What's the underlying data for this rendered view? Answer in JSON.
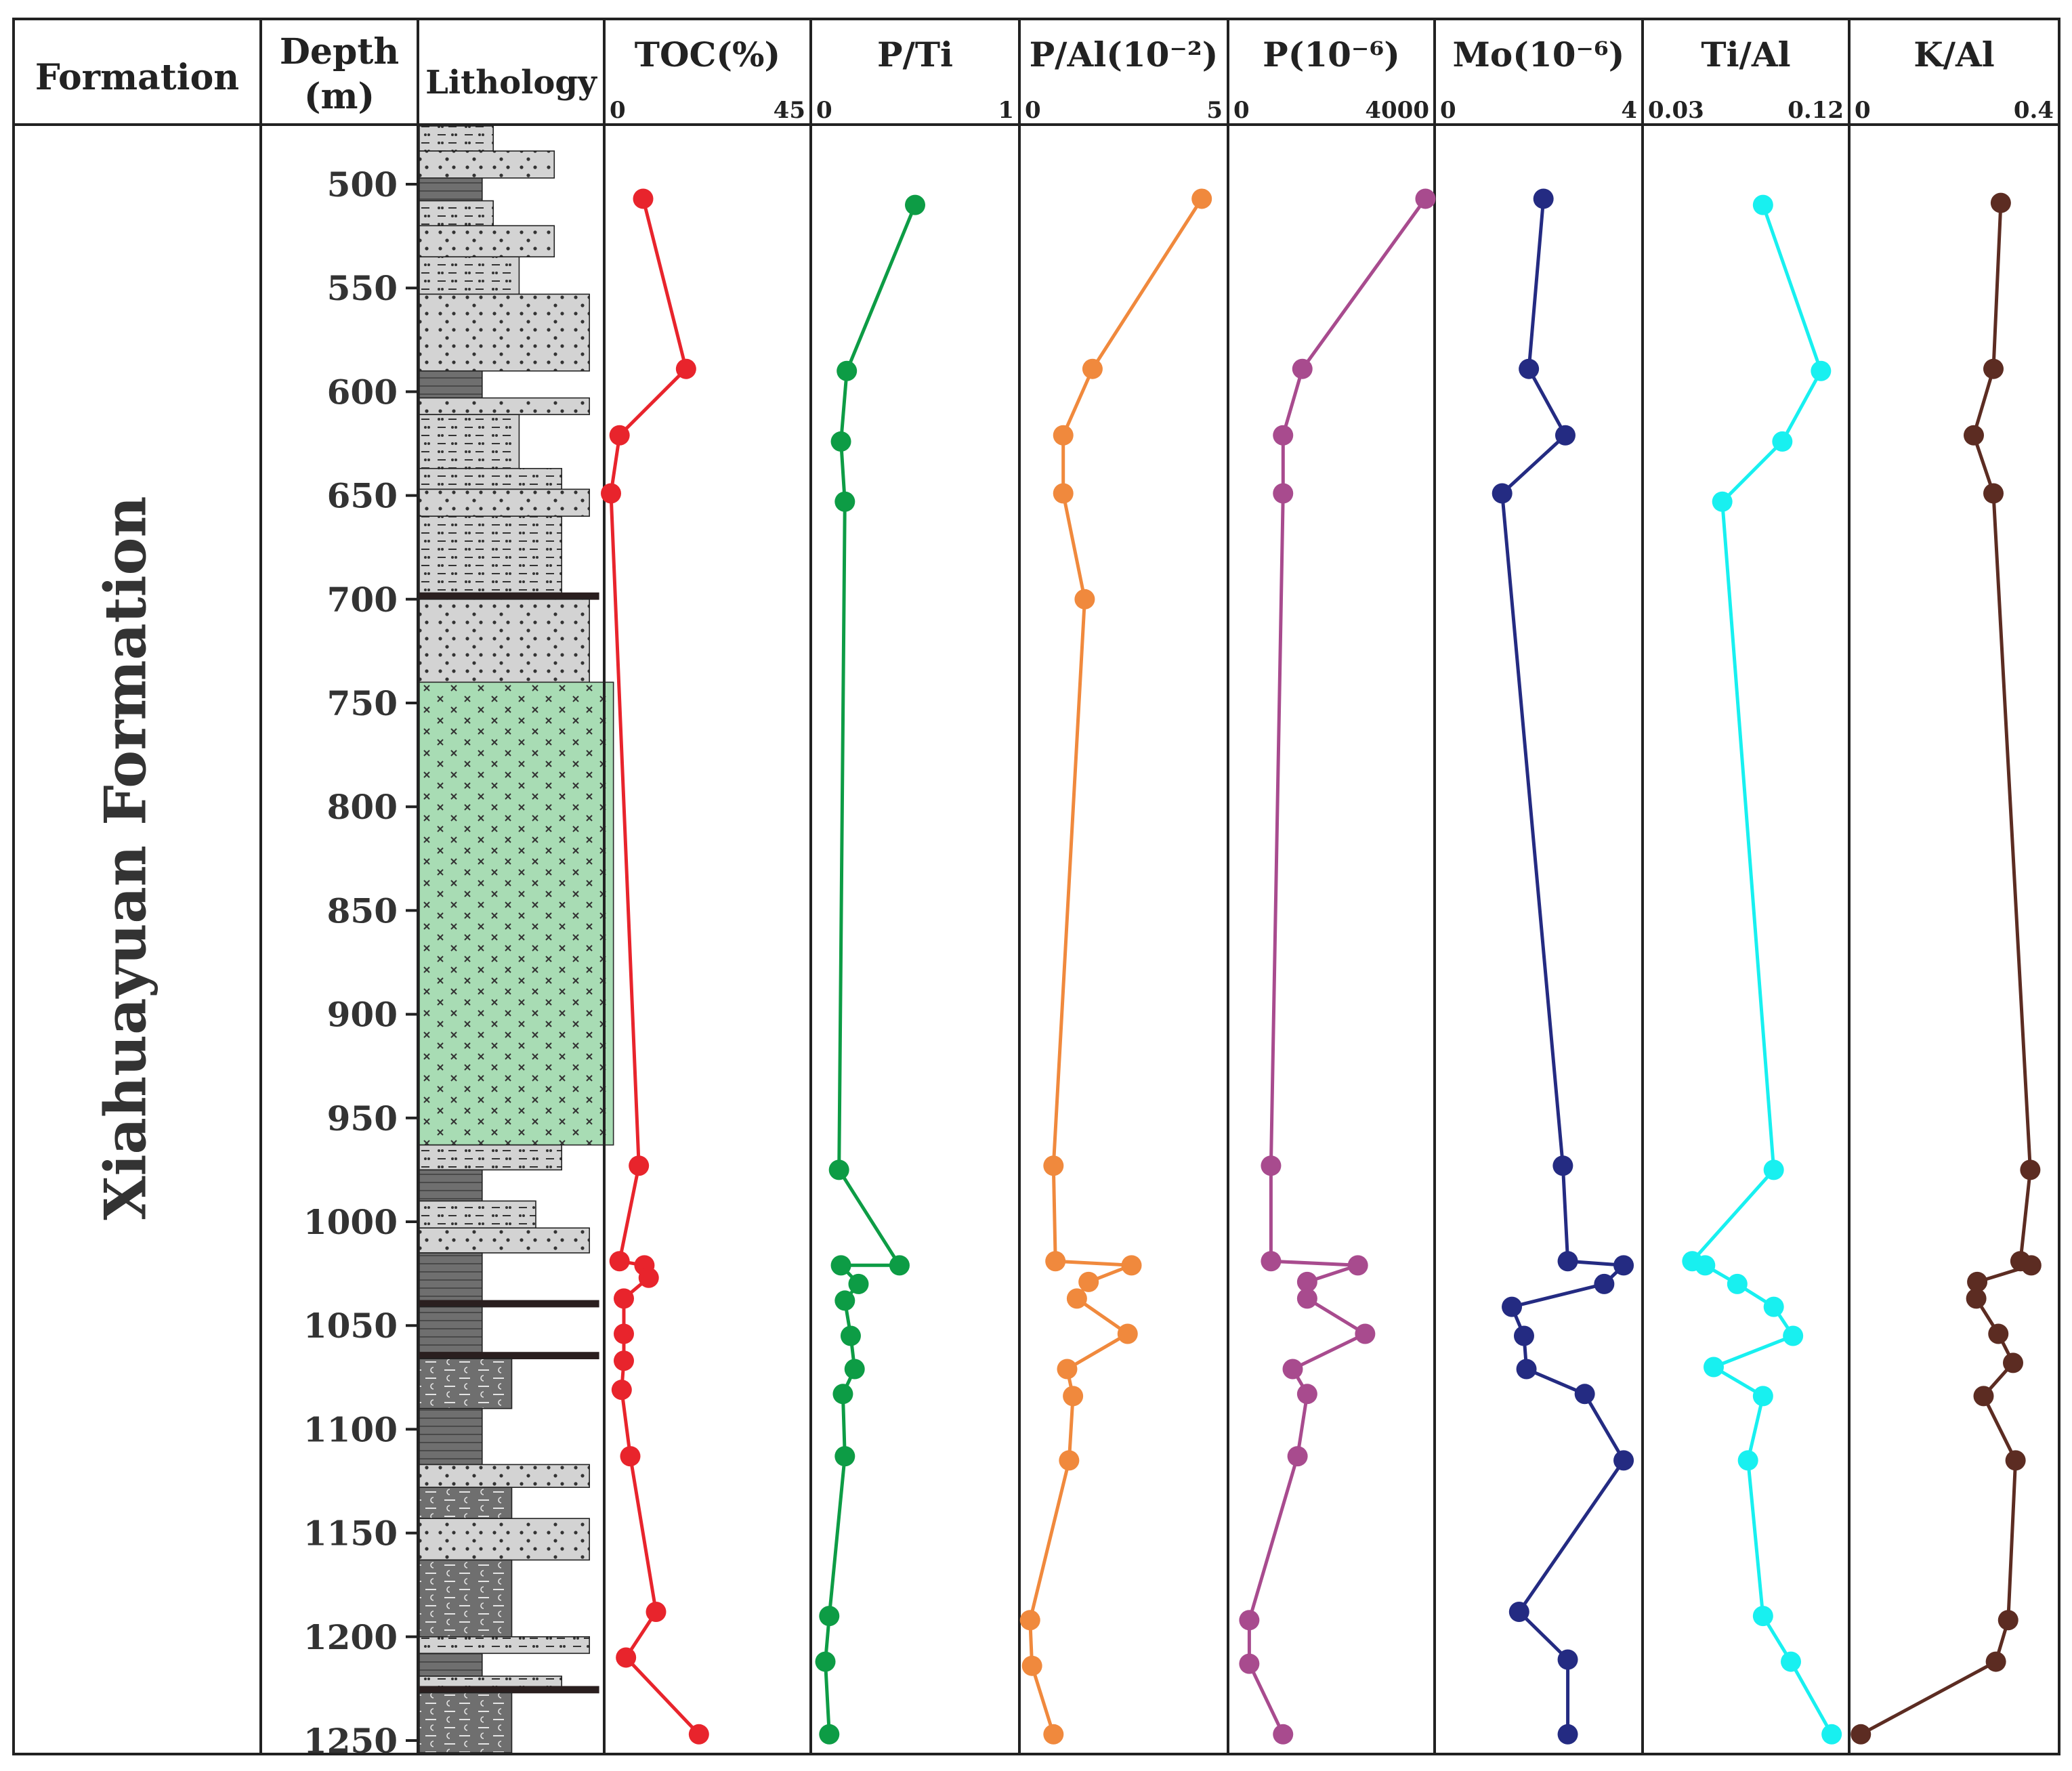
{
  "chart_data": {
    "type": "line",
    "title": "",
    "formation_header": "Formation",
    "depth_header": "Depth",
    "depth_unit": "(m)",
    "lithology_header": "Lithology",
    "formation_name": "Xiahuayuan   Formation",
    "depth_ticks": [
      "500",
      "550",
      "600",
      "650",
      "700",
      "750",
      "800",
      "850",
      "900",
      "950",
      "1000",
      "1050",
      "1100",
      "1150",
      "1200",
      "1250"
    ],
    "depth_range": [
      470,
      1258
    ],
    "lithology_layers": [
      {
        "top": 470,
        "bottom": 484,
        "type": "siltstone",
        "width": 0.4
      },
      {
        "top": 484,
        "bottom": 497,
        "type": "fine-sandstone",
        "width": 0.73
      },
      {
        "top": 497,
        "bottom": 508,
        "type": "mudstone",
        "width": 0.34
      },
      {
        "top": 508,
        "bottom": 520,
        "type": "siltstone",
        "width": 0.4
      },
      {
        "top": 520,
        "bottom": 535,
        "type": "fine-sandstone",
        "width": 0.73
      },
      {
        "top": 535,
        "bottom": 553,
        "type": "siltstone",
        "width": 0.54
      },
      {
        "top": 553,
        "bottom": 590,
        "type": "fine-sandstone",
        "width": 0.92
      },
      {
        "top": 590,
        "bottom": 603,
        "type": "mudstone",
        "width": 0.34
      },
      {
        "top": 603,
        "bottom": 611,
        "type": "fine-sandstone",
        "width": 0.92
      },
      {
        "top": 611,
        "bottom": 637,
        "type": "siltstone",
        "width": 0.54
      },
      {
        "top": 637,
        "bottom": 647,
        "type": "siltstone",
        "width": 0.77
      },
      {
        "top": 647,
        "bottom": 660,
        "type": "fine-sandstone",
        "width": 0.92
      },
      {
        "top": 660,
        "bottom": 697,
        "type": "siltstone",
        "width": 0.77
      },
      {
        "top": 697,
        "bottom": 700,
        "type": "coal",
        "width": 0.97
      },
      {
        "top": 700,
        "bottom": 740,
        "type": "fine-sandstone",
        "width": 0.92
      },
      {
        "top": 740,
        "bottom": 963,
        "type": "igneous",
        "width": 1.05
      },
      {
        "top": 963,
        "bottom": 975,
        "type": "siltstone",
        "width": 0.77
      },
      {
        "top": 975,
        "bottom": 990,
        "type": "mudstone",
        "width": 0.34
      },
      {
        "top": 990,
        "bottom": 1003,
        "type": "siltstone",
        "width": 0.63
      },
      {
        "top": 1003,
        "bottom": 1015,
        "type": "fine-sandstone",
        "width": 0.92
      },
      {
        "top": 1015,
        "bottom": 1038,
        "type": "mudstone",
        "width": 0.34
      },
      {
        "top": 1038,
        "bottom": 1041,
        "type": "coal",
        "width": 0.97
      },
      {
        "top": 1041,
        "bottom": 1063,
        "type": "mudstone",
        "width": 0.34
      },
      {
        "top": 1063,
        "bottom": 1066,
        "type": "coal",
        "width": 0.97
      },
      {
        "top": 1066,
        "bottom": 1090,
        "type": "calc-mudstone",
        "width": 0.5
      },
      {
        "top": 1090,
        "bottom": 1117,
        "type": "mudstone",
        "width": 0.34
      },
      {
        "top": 1117,
        "bottom": 1128,
        "type": "fine-sandstone",
        "width": 0.92
      },
      {
        "top": 1128,
        "bottom": 1143,
        "type": "calc-mudstone",
        "width": 0.5
      },
      {
        "top": 1143,
        "bottom": 1163,
        "type": "fine-sandstone",
        "width": 0.92
      },
      {
        "top": 1163,
        "bottom": 1200,
        "type": "calc-mudstone",
        "width": 0.5
      },
      {
        "top": 1200,
        "bottom": 1208,
        "type": "siltstone",
        "width": 0.92
      },
      {
        "top": 1208,
        "bottom": 1219,
        "type": "mudstone",
        "width": 0.34
      },
      {
        "top": 1219,
        "bottom": 1224,
        "type": "siltstone",
        "width": 0.77
      },
      {
        "top": 1224,
        "bottom": 1227,
        "type": "coal",
        "width": 0.97
      },
      {
        "top": 1227,
        "bottom": 1258,
        "type": "calc-mudstone",
        "width": 0.5
      }
    ],
    "series": [
      {
        "name": "TOC(%)",
        "color": "#e8242c",
        "xlim": [
          0,
          45
        ],
        "tick_labels": [
          "0",
          "45"
        ],
        "points": [
          [
            507,
            7.5
          ],
          [
            589,
            17.5
          ],
          [
            621,
            2
          ],
          [
            649,
            0
          ],
          [
            973,
            6.5
          ],
          [
            1019,
            2
          ],
          [
            1021,
            7.8
          ],
          [
            1027,
            8.8
          ],
          [
            1037,
            3
          ],
          [
            1054,
            3
          ],
          [
            1067,
            3
          ],
          [
            1081,
            2.5
          ],
          [
            1113,
            4.5
          ],
          [
            1188,
            10.5
          ],
          [
            1210,
            3.5
          ],
          [
            1247,
            20.5
          ]
        ]
      },
      {
        "name": "P/Ti",
        "color": "#0d9c45",
        "xlim": [
          0,
          1
        ],
        "tick_labels": [
          "0",
          "1"
        ],
        "points": [
          [
            510,
            0.5
          ],
          [
            590,
            0.15
          ],
          [
            624,
            0.12
          ],
          [
            653,
            0.14
          ],
          [
            975,
            0.11
          ],
          [
            1021,
            0.42
          ],
          [
            1021,
            0.12
          ],
          [
            1030,
            0.21
          ],
          [
            1038,
            0.14
          ],
          [
            1055,
            0.17
          ],
          [
            1071,
            0.19
          ],
          [
            1083,
            0.13
          ],
          [
            1113,
            0.14
          ],
          [
            1190,
            0.06
          ],
          [
            1212,
            0.04
          ],
          [
            1247,
            0.06
          ]
        ]
      },
      {
        "name": "P/Al(10⁻²)",
        "color": "#f0893d",
        "xlim": [
          0,
          5
        ],
        "tick_labels": [
          "0",
          "5"
        ],
        "points": [
          [
            507,
            4.5
          ],
          [
            589,
            1.7
          ],
          [
            621,
            0.95
          ],
          [
            649,
            0.95
          ],
          [
            700,
            1.5
          ],
          [
            973,
            0.7
          ],
          [
            1019,
            0.75
          ],
          [
            1021,
            2.7
          ],
          [
            1029,
            1.6
          ],
          [
            1037,
            1.3
          ],
          [
            1054,
            2.6
          ],
          [
            1071,
            1.05
          ],
          [
            1084,
            1.2
          ],
          [
            1115,
            1.1
          ],
          [
            1192,
            0.1
          ],
          [
            1214,
            0.15
          ],
          [
            1247,
            0.7
          ]
        ]
      },
      {
        "name": "P(10⁻⁶)",
        "color": "#a84b8e",
        "xlim": [
          0,
          4000
        ],
        "tick_labels": [
          "0",
          "4000"
        ],
        "points": [
          [
            507,
            3950
          ],
          [
            589,
            1400
          ],
          [
            621,
            1000
          ],
          [
            649,
            1000
          ],
          [
            973,
            750
          ],
          [
            1019,
            750
          ],
          [
            1021,
            2550
          ],
          [
            1029,
            1500
          ],
          [
            1037,
            1500
          ],
          [
            1054,
            2700
          ],
          [
            1071,
            1200
          ],
          [
            1083,
            1500
          ],
          [
            1113,
            1300
          ],
          [
            1192,
            300
          ],
          [
            1213,
            300
          ],
          [
            1247,
            1000
          ]
        ]
      },
      {
        "name": "Mo(10⁻⁶)",
        "color": "#242b82",
        "xlim": [
          0,
          4
        ],
        "tick_labels": [
          "0",
          "4"
        ],
        "points": [
          [
            507,
            2.1
          ],
          [
            589,
            1.8
          ],
          [
            621,
            2.55
          ],
          [
            649,
            1.25
          ],
          [
            973,
            2.5
          ],
          [
            1019,
            2.6
          ],
          [
            1021,
            3.75
          ],
          [
            1030,
            3.35
          ],
          [
            1041,
            1.45
          ],
          [
            1055,
            1.7
          ],
          [
            1071,
            1.75
          ],
          [
            1083,
            2.95
          ],
          [
            1115,
            3.75
          ],
          [
            1188,
            1.6
          ],
          [
            1211,
            2.6
          ],
          [
            1247,
            2.6
          ]
        ]
      },
      {
        "name": "Ti/Al",
        "color": "#18f0f0",
        "xlim": [
          0.03,
          0.12
        ],
        "tick_labels": [
          "0.03",
          "0.12"
        ],
        "points": [
          [
            510,
            0.083
          ],
          [
            590,
            0.11
          ],
          [
            624,
            0.092
          ],
          [
            653,
            0.064
          ],
          [
            975,
            0.088
          ],
          [
            1019,
            0.05
          ],
          [
            1021,
            0.056
          ],
          [
            1030,
            0.071
          ],
          [
            1041,
            0.088
          ],
          [
            1055,
            0.097
          ],
          [
            1070,
            0.06
          ],
          [
            1084,
            0.083
          ],
          [
            1115,
            0.076
          ],
          [
            1190,
            0.083
          ],
          [
            1212,
            0.096
          ],
          [
            1247,
            0.115
          ]
        ]
      },
      {
        "name": "K/Al",
        "color": "#5c2c22",
        "xlim": [
          0,
          0.4
        ],
        "tick_labels": [
          "0",
          "0.4"
        ],
        "points": [
          [
            509,
            0.295
          ],
          [
            589,
            0.28
          ],
          [
            621,
            0.24
          ],
          [
            649,
            0.28
          ],
          [
            975,
            0.355
          ],
          [
            1019,
            0.335
          ],
          [
            1021,
            0.357
          ],
          [
            1029,
            0.247
          ],
          [
            1037,
            0.245
          ],
          [
            1054,
            0.29
          ],
          [
            1068,
            0.32
          ],
          [
            1084,
            0.26
          ],
          [
            1115,
            0.325
          ],
          [
            1192,
            0.31
          ],
          [
            1212,
            0.285
          ],
          [
            1247,
            0.01
          ]
        ]
      }
    ]
  }
}
